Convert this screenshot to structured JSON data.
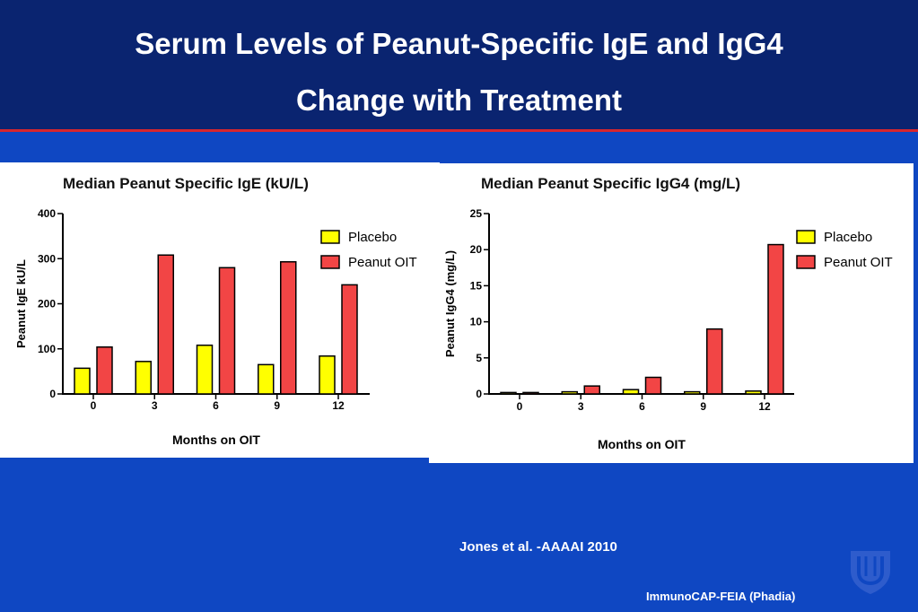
{
  "slide": {
    "title_line1": "Serum Levels of Peanut-Specific IgE and IgG4",
    "title_line2": "Change with Treatment",
    "citation": "Jones et al. -AAAAI 2010",
    "footnote": "ImmunoCAP-FEIA (Phadia)",
    "logo_icon": "shield-logo-icon"
  },
  "colors": {
    "header_bg": "#0a2470",
    "slide_bg": "#0f47c2",
    "rule": "#d8262e",
    "placebo": "#ffff00",
    "peanut_oit": "#f24545"
  },
  "chart_data": [
    {
      "type": "bar",
      "title": "Median Peanut Specific IgE (kU/L)",
      "xlabel": "Months on OIT",
      "ylabel": "Peanut IgE kU/L",
      "categories": [
        "0",
        "3",
        "6",
        "9",
        "12"
      ],
      "ylim": [
        0,
        400
      ],
      "yticks": [
        "0",
        "100",
        "200",
        "300",
        "400"
      ],
      "legend_position": "top-right",
      "grid": false,
      "series": [
        {
          "name": "Placebo",
          "color": "#ffff00",
          "values": [
            57,
            72,
            108,
            65,
            84
          ]
        },
        {
          "name": "Peanut OIT",
          "color": "#f24545",
          "values": [
            104,
            308,
            280,
            293,
            242
          ]
        }
      ]
    },
    {
      "type": "bar",
      "title": "Median Peanut Specific IgG4 (mg/L)",
      "xlabel": "Months on OIT",
      "ylabel": "Peanut IgG4 (mg/L)",
      "categories": [
        "0",
        "3",
        "6",
        "9",
        "12"
      ],
      "ylim": [
        0,
        25
      ],
      "yticks": [
        "0",
        "5",
        "10",
        "15",
        "20",
        "25"
      ],
      "legend_position": "top-right",
      "grid": false,
      "series": [
        {
          "name": "Placebo",
          "color": "#ffff00",
          "values": [
            0.2,
            0.3,
            0.6,
            0.3,
            0.4
          ]
        },
        {
          "name": "Peanut OIT",
          "color": "#f24545",
          "values": [
            0.2,
            1.1,
            2.3,
            9.0,
            20.7
          ]
        }
      ]
    }
  ]
}
